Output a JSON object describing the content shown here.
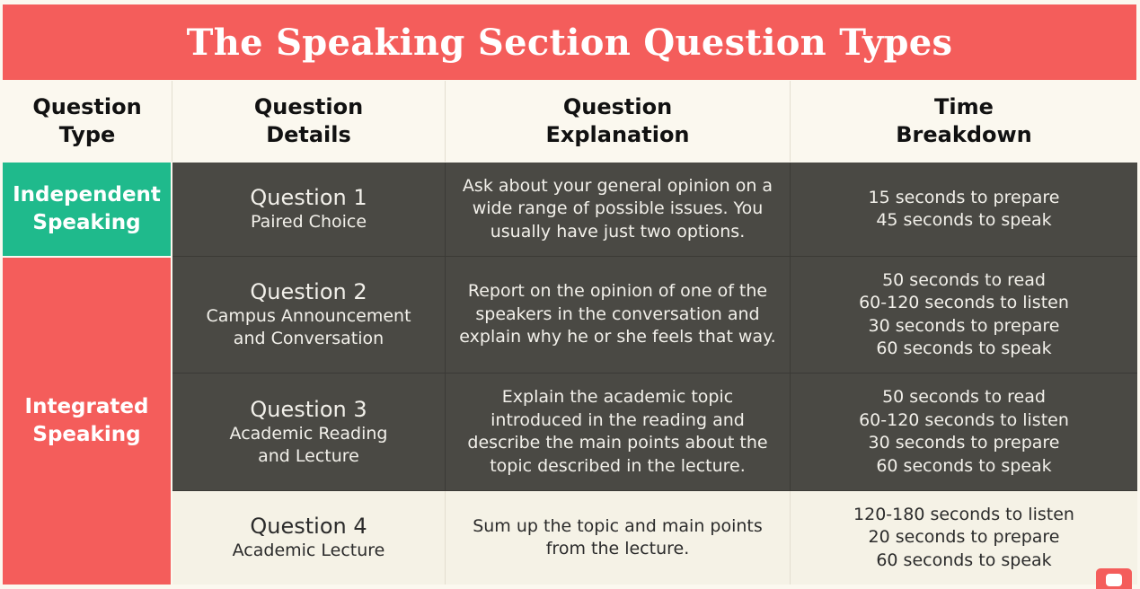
{
  "title": "The Speaking Section Question Types",
  "headers": {
    "type": [
      "Question",
      "Type"
    ],
    "details": [
      "Question",
      "Details"
    ],
    "explanation": [
      "Question",
      "Explanation"
    ],
    "time": [
      "Time",
      "Breakdown"
    ]
  },
  "types": {
    "independent": [
      "Independent",
      "Speaking"
    ],
    "integrated": [
      "Integrated",
      "Speaking"
    ]
  },
  "rows": [
    {
      "question": "Question 1",
      "details": [
        "Paired Choice"
      ],
      "explanation": [
        "Ask about your general opinion on a",
        "wide range of possible issues. You",
        "usually have just two options."
      ],
      "time": [
        "15 seconds to prepare",
        "45 seconds to speak"
      ]
    },
    {
      "question": "Question 2",
      "details": [
        "Campus Announcement",
        "and Conversation"
      ],
      "explanation": [
        "Report on the opinion of one of the",
        "speakers in the conversation and",
        "explain why he or she feels that way."
      ],
      "time": [
        "50 seconds to read",
        "60-120 seconds to listen",
        "30 seconds to prepare",
        "60 seconds to speak"
      ]
    },
    {
      "question": "Question 3",
      "details": [
        "Academic Reading",
        "and Lecture"
      ],
      "explanation": [
        "Explain the academic topic",
        "introduced in the reading and",
        "describe the main points about the",
        "topic described in the lecture."
      ],
      "time": [
        "50 seconds to read",
        "60-120 seconds to listen",
        "30 seconds to prepare",
        "60 seconds to speak"
      ]
    },
    {
      "question": "Question 4",
      "details": [
        "Academic Lecture"
      ],
      "explanation": [
        "Sum up the topic and main points",
        "from the lecture."
      ],
      "time": [
        "120-180 seconds to listen",
        "20 seconds to prepare",
        "60 seconds to speak"
      ]
    }
  ],
  "colors": {
    "title_bg": "#f45d5b",
    "independent_bg": "#1fba8c",
    "integrated_bg": "#f45d5b",
    "dark_row_bg": "#4a4944",
    "light_row_bg": "#f5f2e6"
  },
  "watermark_icon": "youtube-icon"
}
